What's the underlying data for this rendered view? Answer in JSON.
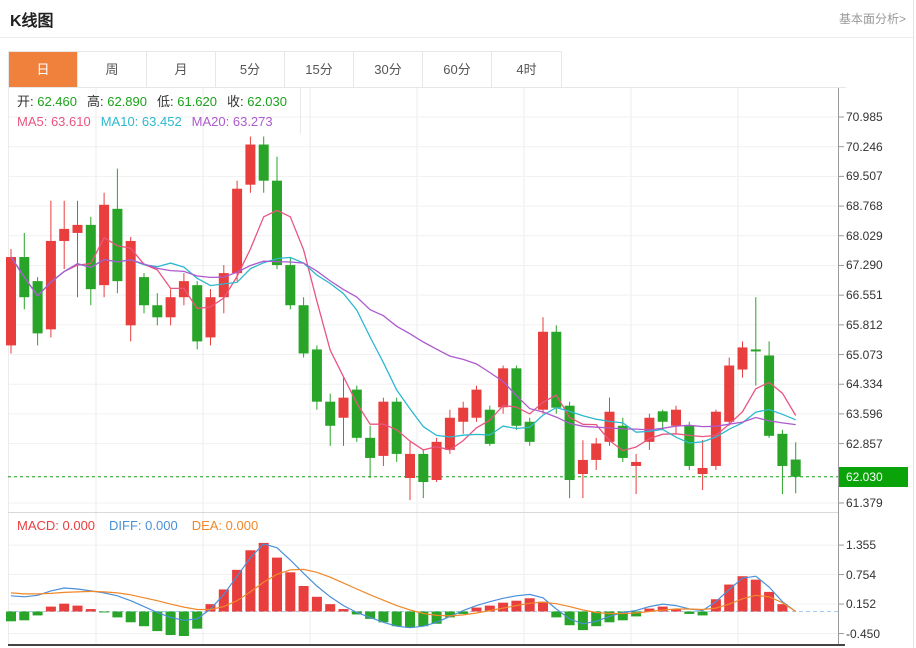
{
  "header": {
    "title": "K线图",
    "link": "基本面分析>"
  },
  "tabs": [
    {
      "name": "tab-day",
      "label": "日",
      "active": true
    },
    {
      "name": "tab-week",
      "label": "周",
      "active": false
    },
    {
      "name": "tab-month",
      "label": "月",
      "active": false
    },
    {
      "name": "tab-5min",
      "label": "5分",
      "active": false
    },
    {
      "name": "tab-15min",
      "label": "15分",
      "active": false
    },
    {
      "name": "tab-30min",
      "label": "30分",
      "active": false
    },
    {
      "name": "tab-60min",
      "label": "60分",
      "active": false
    },
    {
      "name": "tab-4hour",
      "label": "4时",
      "active": false
    }
  ],
  "ohlc_legend": [
    {
      "label": "开:",
      "value": "62.460"
    },
    {
      "label": "高:",
      "value": "62.890"
    },
    {
      "label": "低:",
      "value": "61.620"
    },
    {
      "label": "收:",
      "value": "62.030"
    }
  ],
  "ma_legend": [
    {
      "label": "MA5:",
      "value": "63.610",
      "color": "#e9557f"
    },
    {
      "label": "MA10:",
      "value": "63.452",
      "color": "#2cb9cf"
    },
    {
      "label": "MA20:",
      "value": "63.273",
      "color": "#ad5ace"
    }
  ],
  "macd_legend": [
    {
      "label": "MACD:",
      "value": "0.000",
      "color": "#e83e3e"
    },
    {
      "label": "DIFF:",
      "value": "0.000",
      "color": "#4a90d9"
    },
    {
      "label": "DEA:",
      "value": "0.000",
      "color": "#f0882a"
    }
  ],
  "colors": {
    "up_candle": "#e83e3e",
    "down_candle": "#28a428",
    "ohlc_value": "#1ca21c",
    "active_tab": "#f0813c",
    "current_price_tag": "#0aa30a",
    "current_price_line": "#12a112",
    "ma5": "#e9557f",
    "ma10": "#2cb9cf",
    "ma20": "#ad5ace",
    "diff_line": "#4a90d9",
    "dea_line": "#f0882a",
    "macd_zero_line": "#a8cdf0"
  },
  "chart_data": {
    "type": "candlestick",
    "title": "K线图",
    "panels": [
      "price",
      "macd"
    ],
    "grid": true,
    "legend_position": "top-left",
    "convention": "red = up, green = down",
    "y_ticks": [
      70.985,
      70.246,
      69.507,
      68.768,
      68.029,
      67.29,
      66.551,
      65.812,
      65.073,
      64.334,
      63.596,
      62.857,
      61.379
    ],
    "macd_ticks": [
      1.355,
      0.754,
      0.152,
      -0.45
    ],
    "current_price": 62.03,
    "current_price_label": "62.030",
    "open": 62.46,
    "high": 62.89,
    "low": 61.62,
    "close": 62.03,
    "ma_periods": [
      5,
      10,
      20
    ],
    "ma_values": {
      "ma5": 63.61,
      "ma10": 63.452,
      "ma20": 63.273
    },
    "macd_values": {
      "macd": 0.0,
      "diff": 0.0,
      "dea": 0.0
    },
    "candles_format": "[open, high, low, close]",
    "candles": [
      [
        65.3,
        67.7,
        65.1,
        67.5
      ],
      [
        67.5,
        68.1,
        66.2,
        66.5
      ],
      [
        66.9,
        67.0,
        65.3,
        65.6
      ],
      [
        65.7,
        68.9,
        65.5,
        67.9
      ],
      [
        67.9,
        68.9,
        67.2,
        68.2
      ],
      [
        68.1,
        68.9,
        66.5,
        68.3
      ],
      [
        68.3,
        68.5,
        66.3,
        66.7
      ],
      [
        66.8,
        69.1,
        66.5,
        68.8
      ],
      [
        68.7,
        69.7,
        66.6,
        66.9
      ],
      [
        65.8,
        68.0,
        65.4,
        67.9
      ],
      [
        67.0,
        67.1,
        66.1,
        66.3
      ],
      [
        66.3,
        66.6,
        65.8,
        66.0
      ],
      [
        66.0,
        66.7,
        65.8,
        66.5
      ],
      [
        66.5,
        67.1,
        66.3,
        66.9
      ],
      [
        66.8,
        66.9,
        65.2,
        65.4
      ],
      [
        65.5,
        66.7,
        65.3,
        66.5
      ],
      [
        66.5,
        67.3,
        66.1,
        67.1
      ],
      [
        67.1,
        69.4,
        66.9,
        69.2
      ],
      [
        69.3,
        70.5,
        69.1,
        70.3
      ],
      [
        70.3,
        70.5,
        69.1,
        69.4
      ],
      [
        69.4,
        70.0,
        67.2,
        67.3
      ],
      [
        67.3,
        67.5,
        66.2,
        66.3
      ],
      [
        66.3,
        66.5,
        65.0,
        65.1
      ],
      [
        65.2,
        65.3,
        63.7,
        63.9
      ],
      [
        63.9,
        64.1,
        62.8,
        63.3
      ],
      [
        63.5,
        64.5,
        62.8,
        64.0
      ],
      [
        64.2,
        64.3,
        62.9,
        63.0
      ],
      [
        63.0,
        63.3,
        62.0,
        62.5
      ],
      [
        62.55,
        64.0,
        62.3,
        63.9
      ],
      [
        63.9,
        64.0,
        62.4,
        62.6
      ],
      [
        62.0,
        62.9,
        61.45,
        62.6
      ],
      [
        62.6,
        62.7,
        61.5,
        61.9
      ],
      [
        61.95,
        63.0,
        61.9,
        62.9
      ],
      [
        62.7,
        63.7,
        62.6,
        63.5
      ],
      [
        63.4,
        63.9,
        63.1,
        63.75
      ],
      [
        63.5,
        64.3,
        63.4,
        64.2
      ],
      [
        63.7,
        63.8,
        62.8,
        62.85
      ],
      [
        63.76,
        64.8,
        63.6,
        64.73
      ],
      [
        64.73,
        64.8,
        63.2,
        63.3
      ],
      [
        63.4,
        63.5,
        62.8,
        62.9
      ],
      [
        63.7,
        66.0,
        63.6,
        65.64
      ],
      [
        65.64,
        65.8,
        63.6,
        63.75
      ],
      [
        63.8,
        63.9,
        61.5,
        61.95
      ],
      [
        62.1,
        62.94,
        61.5,
        62.45
      ],
      [
        62.45,
        63.0,
        62.2,
        62.86
      ],
      [
        62.9,
        64.0,
        62.8,
        63.65
      ],
      [
        63.3,
        63.5,
        62.4,
        62.5
      ],
      [
        62.3,
        62.6,
        61.6,
        62.4
      ],
      [
        62.9,
        63.6,
        62.7,
        63.5
      ],
      [
        63.66,
        63.7,
        63.2,
        63.4
      ],
      [
        63.3,
        63.8,
        63.1,
        63.7
      ],
      [
        63.3,
        63.4,
        62.2,
        62.3
      ],
      [
        62.1,
        62.95,
        61.7,
        62.25
      ],
      [
        62.3,
        63.7,
        62.2,
        63.65
      ],
      [
        63.4,
        65.0,
        63.3,
        64.8
      ],
      [
        64.7,
        65.4,
        64.5,
        65.25
      ],
      [
        65.2,
        66.5,
        64.3,
        65.15
      ],
      [
        65.05,
        65.4,
        63.0,
        63.05
      ],
      [
        63.1,
        63.2,
        61.6,
        62.3
      ],
      [
        62.46,
        62.89,
        61.62,
        62.03
      ]
    ],
    "macd": {
      "histogram": [
        -0.2,
        -0.18,
        -0.08,
        0.1,
        0.16,
        0.12,
        0.05,
        -0.02,
        -0.12,
        -0.22,
        -0.3,
        -0.4,
        -0.48,
        -0.5,
        -0.35,
        0.15,
        0.45,
        0.85,
        1.25,
        1.4,
        1.1,
        0.8,
        0.52,
        0.3,
        0.15,
        0.05,
        -0.06,
        -0.15,
        -0.22,
        -0.3,
        -0.33,
        -0.3,
        -0.25,
        -0.12,
        -0.05,
        0.08,
        0.12,
        0.18,
        0.22,
        0.27,
        0.2,
        -0.12,
        -0.28,
        -0.38,
        -0.3,
        -0.22,
        -0.18,
        -0.1,
        0.06,
        0.1,
        0.05,
        -0.05,
        -0.08,
        0.25,
        0.55,
        0.72,
        0.65,
        0.4,
        0.15,
        0.0
      ],
      "diff": [
        0.32,
        0.3,
        0.33,
        0.42,
        0.48,
        0.46,
        0.42,
        0.38,
        0.32,
        0.22,
        0.1,
        -0.02,
        -0.12,
        -0.18,
        -0.15,
        0.05,
        0.35,
        0.72,
        1.1,
        1.38,
        1.3,
        1.05,
        0.78,
        0.52,
        0.3,
        0.12,
        -0.02,
        -0.12,
        -0.22,
        -0.3,
        -0.33,
        -0.3,
        -0.22,
        -0.1,
        0.02,
        0.12,
        0.2,
        0.27,
        0.32,
        0.35,
        0.28,
        0.05,
        -0.15,
        -0.25,
        -0.2,
        -0.1,
        -0.02,
        0.02,
        0.1,
        0.15,
        0.12,
        0.05,
        0.02,
        0.2,
        0.45,
        0.68,
        0.72,
        0.5,
        0.2,
        0.0
      ],
      "dea": [
        0.38,
        0.36,
        0.36,
        0.37,
        0.39,
        0.4,
        0.41,
        0.4,
        0.38,
        0.34,
        0.28,
        0.22,
        0.15,
        0.09,
        0.04,
        0.04,
        0.1,
        0.22,
        0.4,
        0.6,
        0.76,
        0.85,
        0.86,
        0.8,
        0.7,
        0.58,
        0.46,
        0.34,
        0.23,
        0.12,
        0.03,
        -0.04,
        -0.08,
        -0.09,
        -0.07,
        -0.03,
        0.02,
        0.07,
        0.12,
        0.17,
        0.19,
        0.16,
        0.1,
        0.03,
        -0.02,
        -0.04,
        -0.04,
        -0.03,
        0.0,
        0.03,
        0.05,
        0.05,
        0.04,
        0.07,
        0.15,
        0.26,
        0.33,
        0.3,
        0.18,
        0.0
      ]
    }
  }
}
